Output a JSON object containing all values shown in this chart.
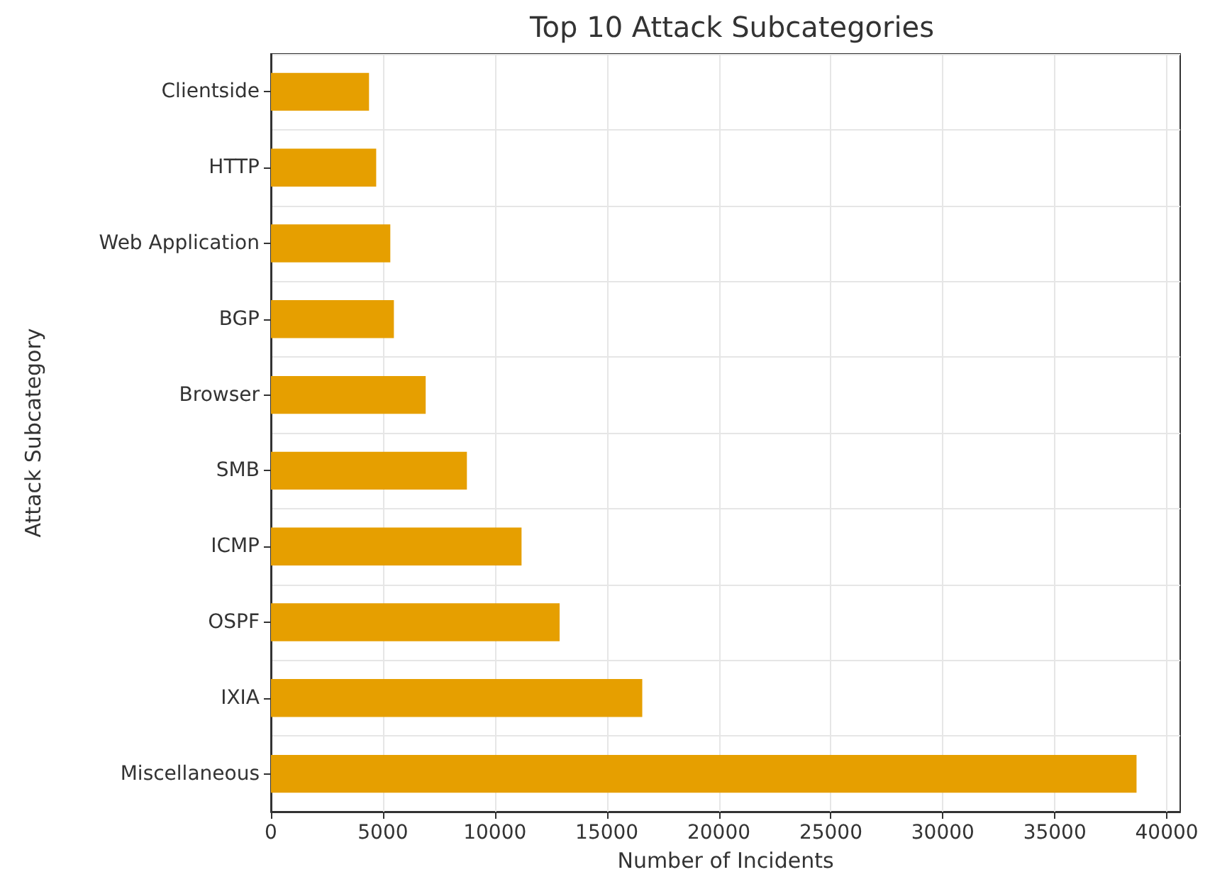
{
  "chart_data": {
    "type": "bar",
    "orientation": "horizontal",
    "title": "Top 10 Attack Subcategories",
    "xlabel": "Number of Incidents",
    "ylabel": "Attack Subcategory",
    "categories": [
      "Clientside",
      "HTTP",
      "Web Application",
      "BGP",
      "Browser",
      "SMB",
      "ICMP",
      "OSPF",
      "IXIA",
      "Miscellaneous"
    ],
    "values": [
      4380,
      4700,
      5330,
      5490,
      6910,
      8750,
      11190,
      12890,
      16580,
      38650
    ],
    "color": "#e69f00",
    "xlim": [
      0,
      40600
    ],
    "xticks": [
      0,
      5000,
      10000,
      15000,
      20000,
      25000,
      30000,
      35000,
      40000
    ],
    "grid": true
  }
}
